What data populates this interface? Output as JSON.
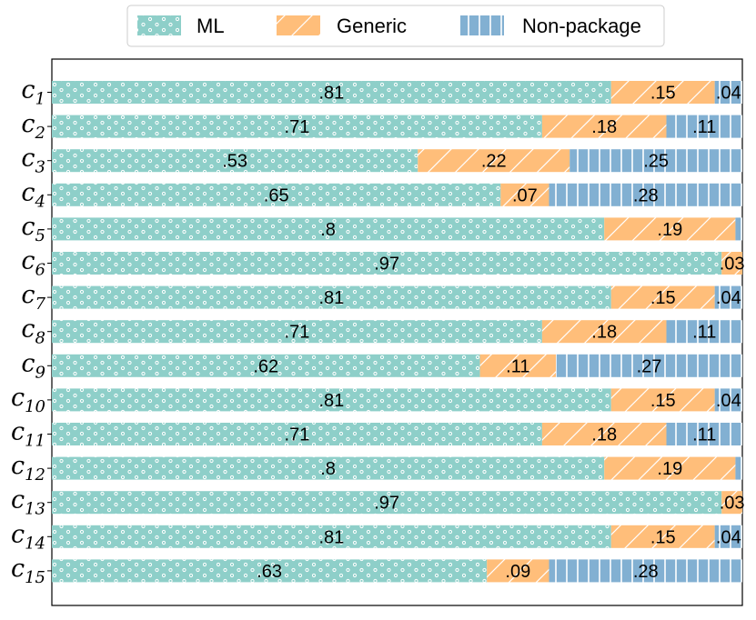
{
  "chart_data": {
    "type": "bar",
    "orientation": "horizontal",
    "stacked": true,
    "normalized": true,
    "xlim": [
      0,
      1
    ],
    "legend_position": "top-center",
    "colors": {
      "ML": "#8ecfc9",
      "Generic": "#ffbe7a",
      "Non-package": "#82b0d2"
    },
    "patterns": {
      "ML": "dots",
      "Generic": "diagonal-hatch",
      "Non-package": "vertical-hatch"
    },
    "categories": [
      {
        "base": "c",
        "sub": "1"
      },
      {
        "base": "c",
        "sub": "2"
      },
      {
        "base": "c",
        "sub": "3"
      },
      {
        "base": "c",
        "sub": "4"
      },
      {
        "base": "c",
        "sub": "5"
      },
      {
        "base": "c",
        "sub": "6"
      },
      {
        "base": "c",
        "sub": "7"
      },
      {
        "base": "c",
        "sub": "8"
      },
      {
        "base": "c",
        "sub": "9"
      },
      {
        "base": "c",
        "sub": "10"
      },
      {
        "base": "c",
        "sub": "11"
      },
      {
        "base": "c",
        "sub": "12"
      },
      {
        "base": "c",
        "sub": "13"
      },
      {
        "base": "c",
        "sub": "14"
      },
      {
        "base": "c",
        "sub": "15"
      }
    ],
    "series": [
      {
        "name": "ML",
        "values": [
          0.81,
          0.71,
          0.53,
          0.65,
          0.8,
          0.97,
          0.81,
          0.71,
          0.62,
          0.81,
          0.71,
          0.8,
          0.97,
          0.81,
          0.63
        ],
        "labels": [
          ".81",
          ".71",
          ".53",
          ".65",
          ".8",
          ".97",
          ".81",
          ".71",
          ".62",
          ".81",
          ".71",
          ".8",
          ".97",
          ".81",
          ".63"
        ]
      },
      {
        "name": "Generic",
        "values": [
          0.15,
          0.18,
          0.22,
          0.07,
          0.19,
          0.03,
          0.15,
          0.18,
          0.11,
          0.15,
          0.18,
          0.19,
          0.03,
          0.15,
          0.09
        ],
        "labels": [
          ".15",
          ".18",
          ".22",
          ".07",
          ".19",
          ".03",
          ".15",
          ".18",
          ".11",
          ".15",
          ".18",
          ".19",
          ".03",
          ".15",
          ".09"
        ]
      },
      {
        "name": "Non-package",
        "values": [
          0.04,
          0.11,
          0.25,
          0.28,
          0.01,
          0.0,
          0.04,
          0.11,
          0.27,
          0.04,
          0.11,
          0.01,
          0.0,
          0.04,
          0.28
        ],
        "labels": [
          ".04",
          ".11",
          ".25",
          ".28",
          "",
          "",
          ".04",
          ".11",
          ".27",
          ".04",
          ".11",
          "",
          "",
          ".04",
          ".28"
        ]
      }
    ]
  }
}
